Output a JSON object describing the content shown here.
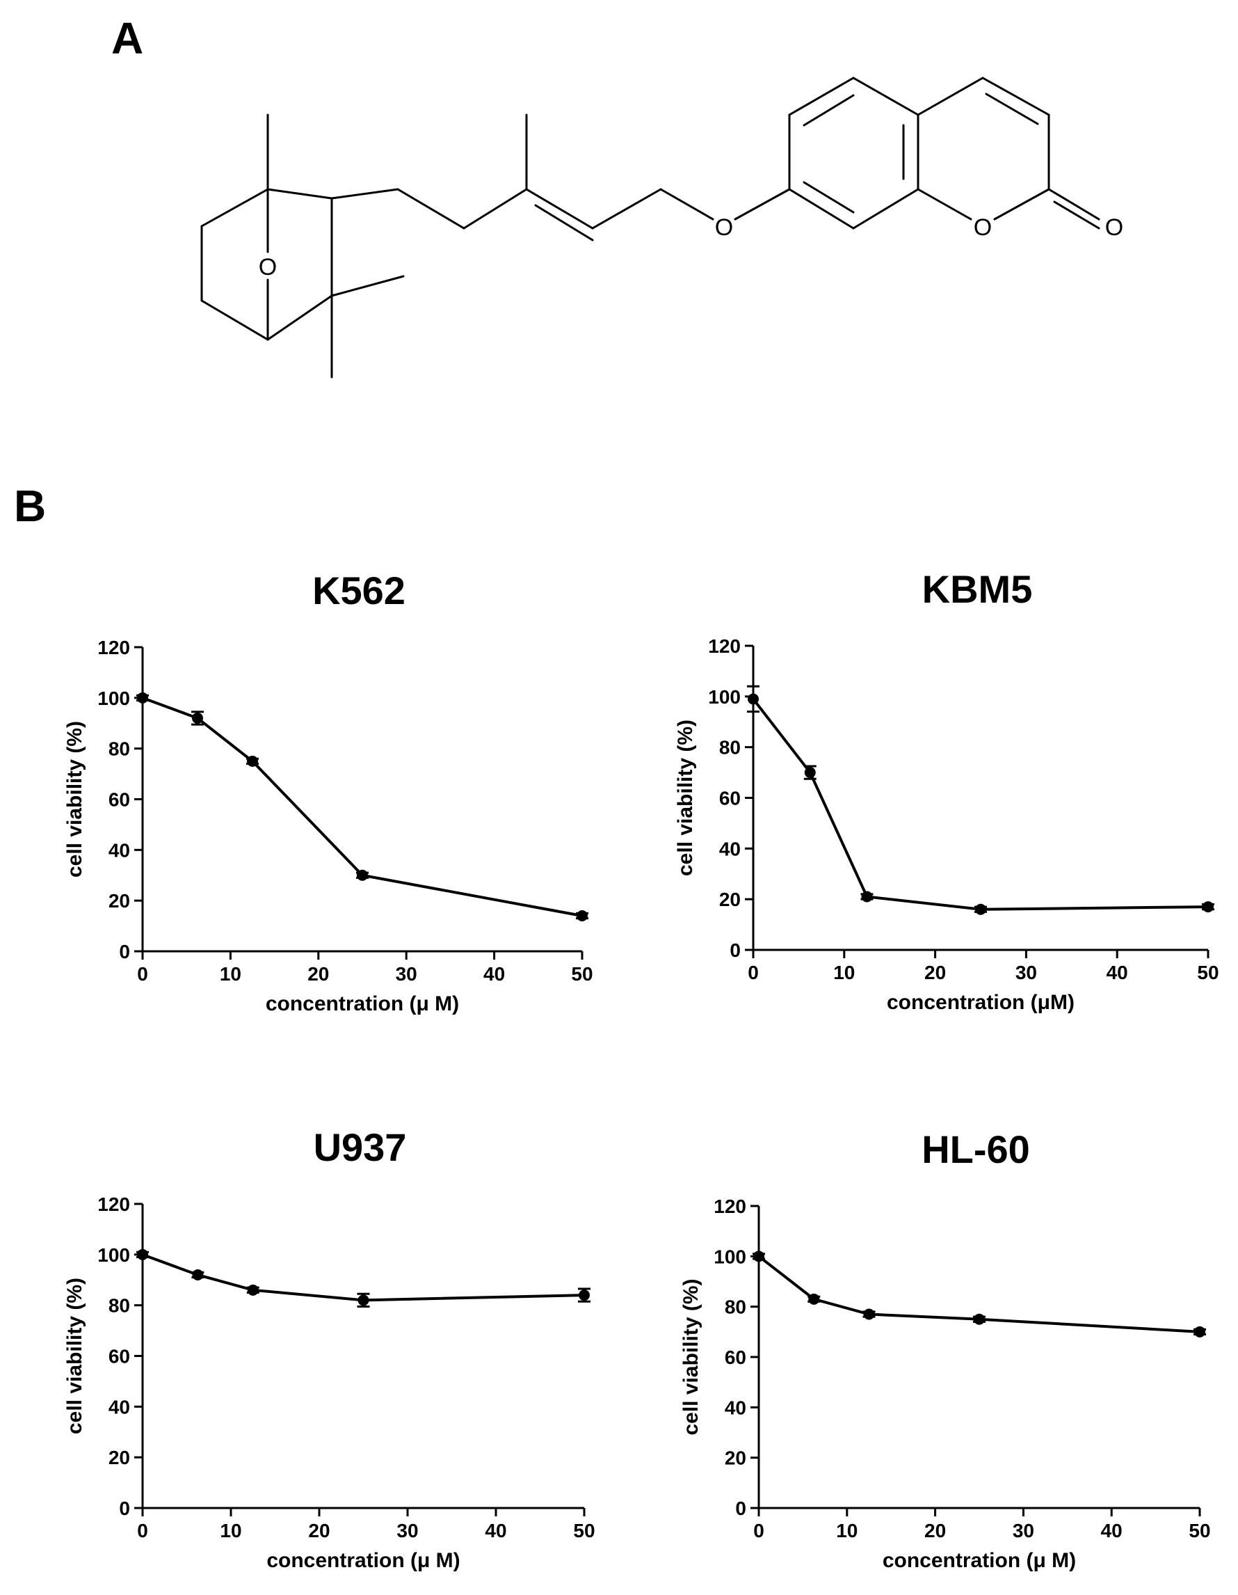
{
  "panels": {
    "a_label": "A",
    "b_label": "B"
  },
  "structure": {
    "atom_labels": [
      "O",
      "O",
      "O",
      "O"
    ]
  },
  "chart_data": [
    {
      "type": "line",
      "title": "K562",
      "xlabel": "concentration (μ M)",
      "ylabel": "cell viability (%)",
      "xlim": [
        0,
        50
      ],
      "ylim": [
        0,
        120
      ],
      "x_ticks": [
        0,
        10,
        20,
        30,
        40,
        50
      ],
      "y_ticks": [
        0,
        20,
        40,
        60,
        80,
        100,
        120
      ],
      "x": [
        0,
        6.25,
        12.5,
        25,
        50
      ],
      "y": [
        100,
        92,
        75,
        30,
        14
      ],
      "error": [
        1,
        2.5,
        1,
        1,
        1
      ],
      "grid": false
    },
    {
      "type": "line",
      "title": "KBM5",
      "xlabel": "concentration (μM)",
      "ylabel": "cell viability (%)",
      "xlim": [
        0,
        50
      ],
      "ylim": [
        0,
        120
      ],
      "x_ticks": [
        0,
        10,
        20,
        30,
        40,
        50
      ],
      "y_ticks": [
        0,
        20,
        40,
        60,
        80,
        100,
        120
      ],
      "x": [
        0,
        6.25,
        12.5,
        25,
        50
      ],
      "y": [
        99,
        70,
        21,
        16,
        17
      ],
      "error": [
        5,
        2.5,
        1,
        1,
        1
      ],
      "grid": false
    },
    {
      "type": "line",
      "title": "U937",
      "xlabel": "concentration (μ M)",
      "ylabel": "cell viability (%)",
      "xlim": [
        0,
        50
      ],
      "ylim": [
        0,
        120
      ],
      "x_ticks": [
        0,
        10,
        20,
        30,
        40,
        50
      ],
      "y_ticks": [
        0,
        20,
        40,
        60,
        80,
        100,
        120
      ],
      "x": [
        0,
        6.25,
        12.5,
        25,
        50
      ],
      "y": [
        100,
        92,
        86,
        82,
        84
      ],
      "error": [
        1,
        1,
        1,
        2.5,
        2.5
      ],
      "grid": false
    },
    {
      "type": "line",
      "title": "HL-60",
      "xlabel": "concentration (μ M)",
      "ylabel": "cell viability (%)",
      "xlim": [
        0,
        50
      ],
      "ylim": [
        0,
        120
      ],
      "x_ticks": [
        0,
        10,
        20,
        30,
        40,
        50
      ],
      "y_ticks": [
        0,
        20,
        40,
        60,
        80,
        100,
        120
      ],
      "x": [
        0,
        6.25,
        12.5,
        25,
        50
      ],
      "y": [
        100,
        83,
        77,
        75,
        70
      ],
      "error": [
        1,
        1,
        1,
        1,
        1
      ],
      "grid": false
    }
  ]
}
